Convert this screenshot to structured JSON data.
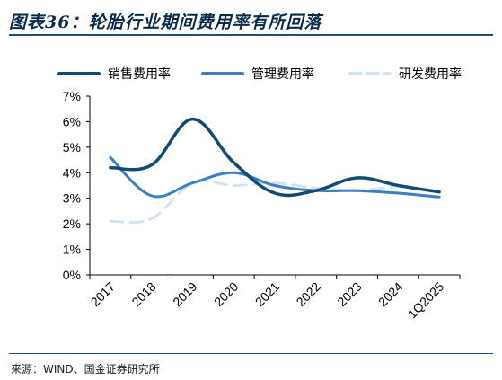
{
  "title": "图表36：轮胎行业期间费用率有所回落",
  "source": "来源：WIND、国金证券研究所",
  "chart_data": {
    "type": "line",
    "title": "图表36：轮胎行业期间费用率有所回落",
    "categories": [
      "2017",
      "2018",
      "2019",
      "2020",
      "2021",
      "2022",
      "2023",
      "2024",
      "1Q2025"
    ],
    "ylim": [
      0,
      7
    ],
    "yticks": [
      "0%",
      "1%",
      "2%",
      "3%",
      "4%",
      "5%",
      "6%",
      "7%"
    ],
    "unit": "%",
    "legend_position": "top",
    "series": [
      {
        "name": "销售费用率",
        "values": [
          4.2,
          4.3,
          6.1,
          4.4,
          3.2,
          3.3,
          3.8,
          3.5,
          3.25
        ],
        "color": "#124b71",
        "dash": "solid"
      },
      {
        "name": "管理费用率",
        "values": [
          4.6,
          3.1,
          3.6,
          4.0,
          3.5,
          3.3,
          3.3,
          3.2,
          3.05
        ],
        "color": "#3b7fc4",
        "dash": "solid"
      },
      {
        "name": "研发费用率",
        "values": [
          2.1,
          2.2,
          3.6,
          3.5,
          3.6,
          3.4,
          3.3,
          3.5,
          null
        ],
        "color": "#d3e3f2",
        "dash": "dashed"
      }
    ]
  }
}
